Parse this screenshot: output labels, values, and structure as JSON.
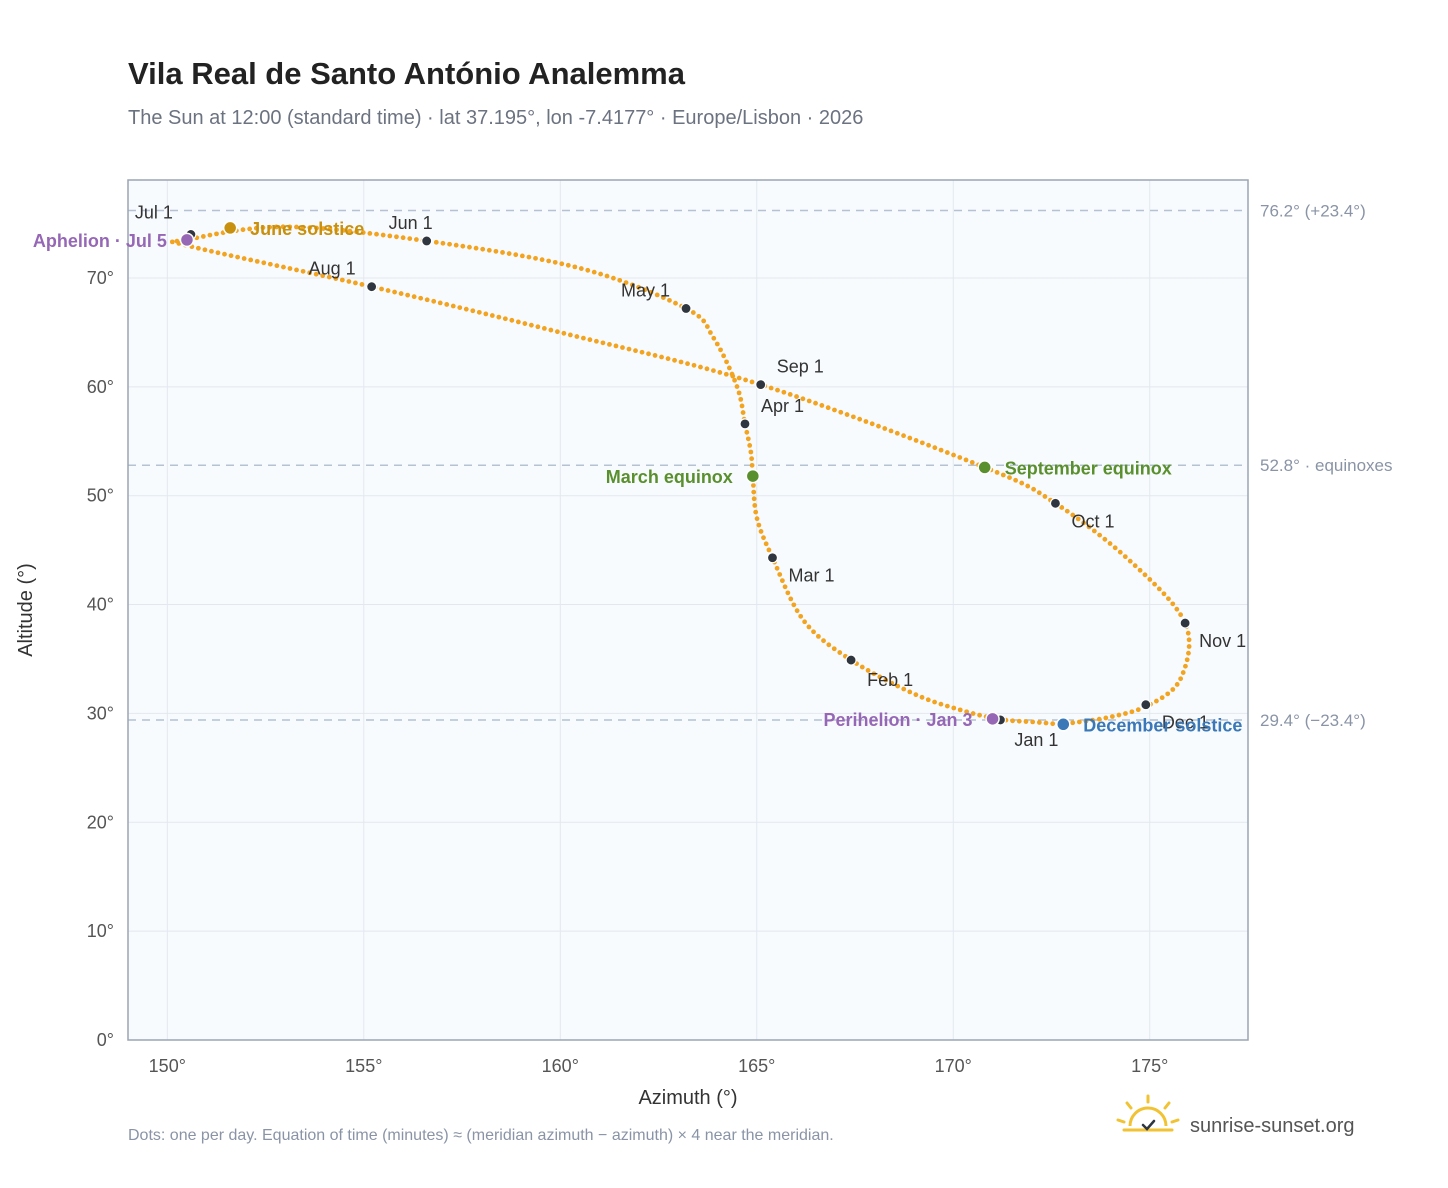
{
  "page": {
    "title": "Vila Real de Santo António Analemma",
    "subtitle": "The Sun at 12:00 (standard time) · lat 37.195°, lon -7.4177° · Europe/Lisbon · 2026",
    "footnote": "Dots: one per day. Equation of time (minutes) ≈ (meridian azimuth − azimuth) × 4 near the meridian.",
    "brand": "sunrise-sunset.org"
  },
  "colors": {
    "curve": "#f2a421",
    "month_marker": "#2f3640",
    "solstice_june": "#c8900f",
    "equinox": "#5a8f2e",
    "december_solstice": "#3a78b8",
    "apsis": "#9567b5",
    "reference_line": "#b4c2d3",
    "plot_bg": "#f8fbfe",
    "grid": "#e3e8ef",
    "frame": "#9aa5b4",
    "brand_sun": "#f1c232"
  },
  "chart_data": {
    "type": "scatter",
    "xlabel": "Azimuth (°)",
    "ylabel": "Altitude (°)",
    "xlim": [
      149,
      177.5
    ],
    "ylim": [
      0,
      79
    ],
    "xticks": [
      150,
      155,
      160,
      165,
      170,
      175
    ],
    "yticks": [
      0,
      10,
      20,
      30,
      40,
      50,
      60,
      70
    ],
    "tick_suffix": "°",
    "grid": true,
    "series": [
      {
        "key": "analemma",
        "marker": "daily dots",
        "x": [
          172.7,
          172.1,
          171.2,
          170.2,
          169.0,
          167.4,
          166.2,
          165.4,
          165.0,
          164.9,
          164.85,
          164.7,
          164.5,
          163.9,
          163.2,
          160.5,
          156.6,
          153.0,
          150.5,
          150.6,
          155.2,
          160.0,
          165.1,
          170.8,
          172.6,
          174.5,
          175.9,
          175.8,
          175.0,
          173.9,
          172.7
        ],
        "y": [
          29.0,
          29.2,
          29.45,
          30.3,
          31.8,
          34.9,
          38.5,
          44.3,
          48.0,
          51.8,
          54.0,
          56.6,
          60.0,
          64.5,
          67.2,
          70.9,
          73.4,
          74.7,
          73.5,
          72.9,
          69.2,
          65.0,
          60.2,
          52.6,
          49.3,
          44.0,
          38.3,
          33.3,
          30.8,
          29.6,
          29.0
        ]
      }
    ],
    "month_markers": [
      {
        "label": "Jan 1",
        "x": 171.2,
        "y": 29.4
      },
      {
        "label": "Feb 1",
        "x": 167.4,
        "y": 34.9
      },
      {
        "label": "Mar 1",
        "x": 165.4,
        "y": 44.3
      },
      {
        "label": "Apr 1",
        "x": 164.7,
        "y": 56.6
      },
      {
        "label": "May 1",
        "x": 163.2,
        "y": 67.2
      },
      {
        "label": "Jun 1",
        "x": 156.6,
        "y": 73.4
      },
      {
        "label": "Jul 1",
        "x": 150.6,
        "y": 74.0
      },
      {
        "label": "Aug 1",
        "x": 155.2,
        "y": 69.2
      },
      {
        "label": "Sep 1",
        "x": 165.1,
        "y": 60.2
      },
      {
        "label": "Oct 1",
        "x": 172.6,
        "y": 49.3
      },
      {
        "label": "Nov 1",
        "x": 175.9,
        "y": 38.3
      },
      {
        "label": "Dec 1",
        "x": 174.9,
        "y": 30.8
      }
    ],
    "events": [
      {
        "label": "June solstice",
        "x": 151.6,
        "y": 74.6,
        "color_key": "solstice_june"
      },
      {
        "label": "Aphelion · Jul 5",
        "x": 150.5,
        "y": 73.5,
        "color_key": "apsis"
      },
      {
        "label": "March equinox",
        "x": 164.9,
        "y": 51.8,
        "color_key": "equinox"
      },
      {
        "label": "September equinox",
        "x": 170.8,
        "y": 52.6,
        "color_key": "equinox"
      },
      {
        "label": "Perihelion · Jan 3",
        "x": 171.0,
        "y": 29.5,
        "color_key": "apsis"
      },
      {
        "label": "December solstice",
        "x": 172.8,
        "y": 29.0,
        "color_key": "december_solstice"
      }
    ],
    "reference_lines": [
      {
        "y": 76.2,
        "label": "76.2° (+23.4°)"
      },
      {
        "y": 52.8,
        "label": "52.8° · equinoxes"
      },
      {
        "y": 29.4,
        "label": "29.4° (−23.4°)"
      }
    ]
  }
}
